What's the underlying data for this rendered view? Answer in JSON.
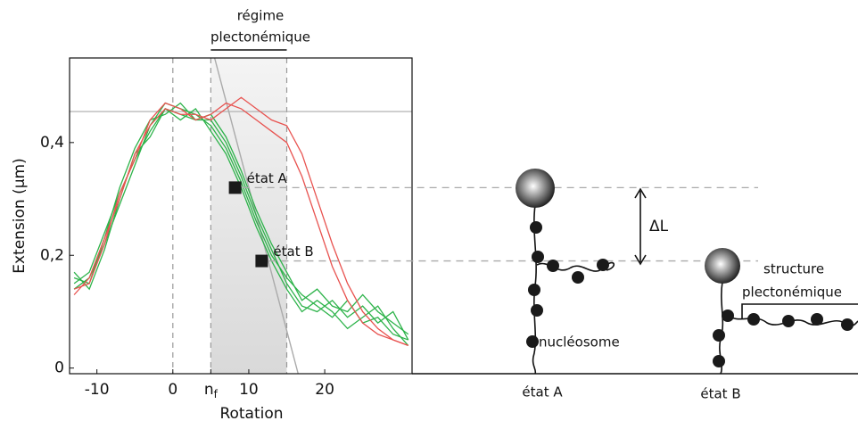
{
  "chart_data": {
    "type": "line",
    "title": [
      "régime",
      "plectonémique"
    ],
    "xlabel": "Rotation",
    "ylabel": "Extension (µm)",
    "xlim": [
      -13.6,
      31.5
    ],
    "ylim": [
      -0.01,
      0.55
    ],
    "xticks": [
      -10,
      0,
      {
        "value": 5,
        "label": "n",
        "label_sub": "f"
      },
      10,
      20
    ],
    "yticks": [
      0,
      {
        "value": 0.2,
        "label": "0,2"
      },
      {
        "value": 0.4,
        "label": "0,4"
      }
    ],
    "x": [
      -13,
      -11,
      -9,
      -7,
      -5,
      -3,
      -1,
      1,
      3,
      5,
      7,
      9,
      11,
      13,
      15,
      17,
      19,
      21,
      23,
      25,
      27,
      29,
      31
    ],
    "series": [
      {
        "color": "#2db34a",
        "values": [
          0.15,
          0.17,
          0.24,
          0.31,
          0.37,
          0.42,
          0.46,
          0.45,
          0.44,
          0.44,
          0.4,
          0.34,
          0.27,
          0.21,
          0.15,
          0.11,
          0.1,
          0.12,
          0.09,
          0.11,
          0.08,
          0.1,
          0.05
        ]
      },
      {
        "color": "#2db34a",
        "values": [
          0.14,
          0.16,
          0.22,
          0.29,
          0.36,
          0.43,
          0.47,
          0.46,
          0.45,
          0.43,
          0.39,
          0.33,
          0.26,
          0.2,
          0.16,
          0.13,
          0.11,
          0.09,
          0.12,
          0.08,
          0.09,
          0.06,
          0.05
        ]
      },
      {
        "color": "#2db34a",
        "values": [
          0.16,
          0.15,
          0.23,
          0.32,
          0.39,
          0.44,
          0.45,
          0.47,
          0.44,
          0.45,
          0.41,
          0.35,
          0.28,
          0.22,
          0.17,
          0.12,
          0.14,
          0.11,
          0.1,
          0.13,
          0.1,
          0.08,
          0.06
        ]
      },
      {
        "color": "#2db34a",
        "values": [
          0.17,
          0.14,
          0.21,
          0.3,
          0.38,
          0.41,
          0.46,
          0.44,
          0.46,
          0.42,
          0.38,
          0.32,
          0.25,
          0.19,
          0.14,
          0.1,
          0.12,
          0.1,
          0.07,
          0.09,
          0.11,
          0.07,
          0.04
        ]
      },
      {
        "color": "#e8524f",
        "values": [
          0.13,
          0.16,
          0.23,
          0.3,
          0.38,
          0.43,
          0.46,
          0.45,
          0.45,
          0.44,
          0.46,
          0.48,
          0.46,
          0.44,
          0.43,
          0.38,
          0.3,
          0.22,
          0.15,
          0.1,
          0.07,
          0.05,
          0.04
        ]
      },
      {
        "color": "#e8524f",
        "values": [
          0.14,
          0.15,
          0.22,
          0.31,
          0.37,
          0.44,
          0.47,
          0.46,
          0.44,
          0.45,
          0.47,
          0.46,
          0.44,
          0.42,
          0.4,
          0.34,
          0.26,
          0.18,
          0.12,
          0.08,
          0.06,
          0.05,
          0.04
        ]
      }
    ],
    "hline": 0.455,
    "vlines": [
      0,
      5,
      15
    ],
    "shade": [
      5,
      15
    ],
    "regime": [
      5,
      15
    ],
    "guide": [
      [
        5.5,
        0.55
      ],
      [
        16.5,
        -0.01
      ]
    ],
    "points": [
      {
        "label": "état A",
        "x": 8.2,
        "y": 0.32
      },
      {
        "label": "état B",
        "x": 11.7,
        "y": 0.19
      }
    ]
  },
  "diagram": {
    "delta": "ΔL",
    "structure": [
      "structure",
      "plectonémique"
    ],
    "nucleosome": "nucléosome",
    "state_a": "état A",
    "state_b": "état B"
  }
}
